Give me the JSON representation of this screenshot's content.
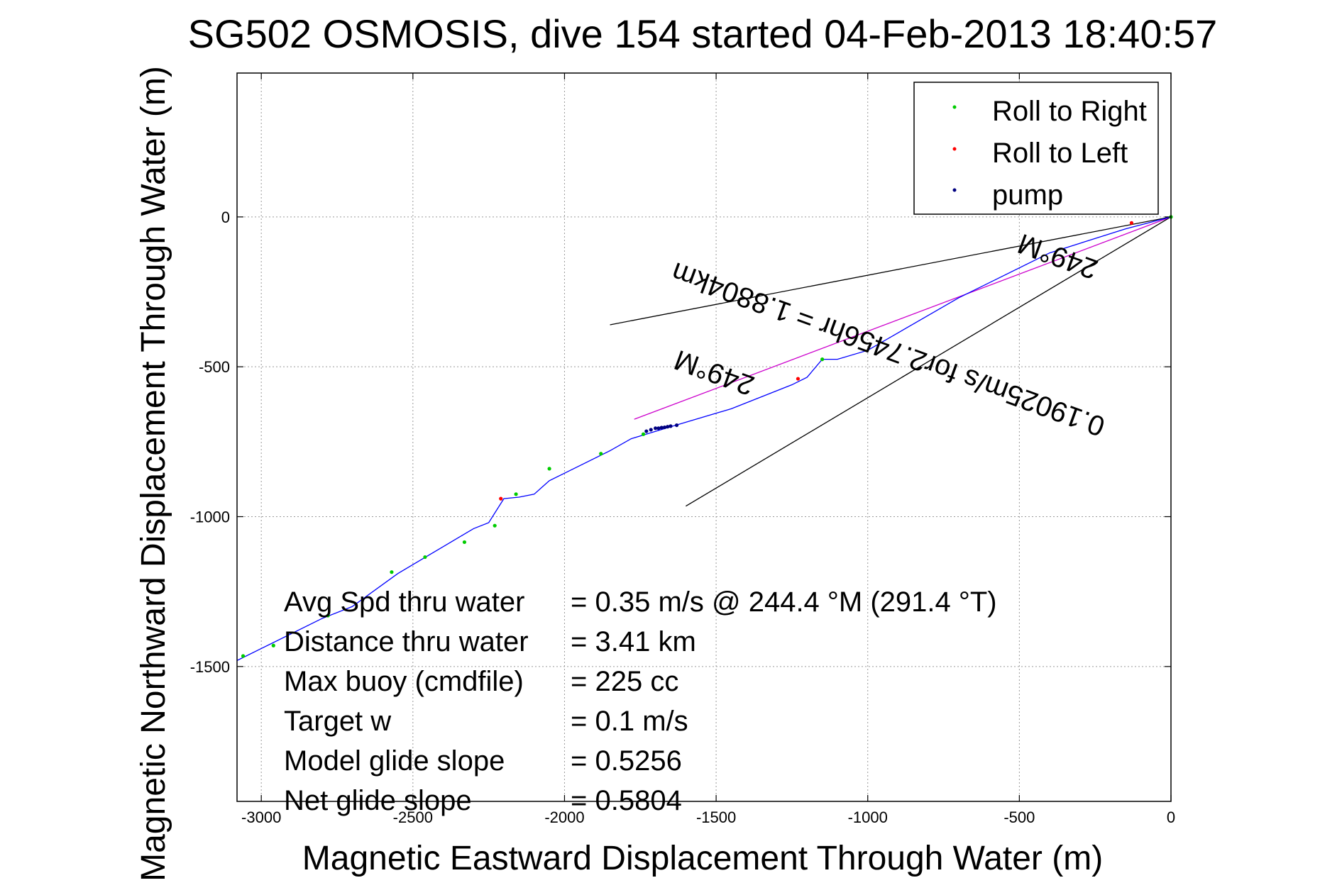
{
  "chart_data": {
    "type": "line",
    "title": "SG502 OSMOSIS, dive 154 started 04-Feb-2013 18:40:57",
    "xlabel": "Magnetic Eastward Displacement Through Water (m)",
    "ylabel": "Magnetic Northward Displacement Through Water (m)",
    "xlim": [
      -3080,
      0
    ],
    "ylim": [
      -1950,
      480
    ],
    "xticks": [
      -3000,
      -2500,
      -2000,
      -1500,
      -1000,
      -500,
      0
    ],
    "xtick_labels": [
      "-3000",
      "-2500",
      "-2000",
      "-1500",
      "-1000",
      "-500",
      "0"
    ],
    "yticks": [
      0,
      -500,
      -1000,
      -1500
    ],
    "ytick_labels": [
      "0",
      "-500",
      "-1000",
      "-1500"
    ],
    "grid": true,
    "legend": {
      "placement": "top-right",
      "entries": [
        {
          "label": "Roll to Right",
          "color": "#00cc00"
        },
        {
          "label": "Roll to Left",
          "color": "#ff0000"
        },
        {
          "label": "pump",
          "color": "#000080"
        }
      ]
    },
    "series": [
      {
        "color": "#0000ff",
        "x": [
          0,
          -150,
          -400,
          -700,
          -1000,
          -1100,
          -1150,
          -1200,
          -1250,
          -1450,
          -1650,
          -1780,
          -1850,
          -1950,
          -2050,
          -2100,
          -2150,
          -2200,
          -2250,
          -2300,
          -2450,
          -2550,
          -2700,
          -2800,
          -3000,
          -3080
        ],
        "y": [
          0,
          -40,
          -120,
          -270,
          -445,
          -475,
          -475,
          -535,
          -560,
          -640,
          -700,
          -740,
          -780,
          -830,
          -880,
          -925,
          -935,
          -940,
          -1020,
          -1040,
          -1130,
          -1190,
          -1300,
          -1340,
          -1440,
          -1480
        ]
      }
    ],
    "markers": {
      "roll_right": {
        "color": "#00cc00",
        "x": [
          0,
          -1150,
          -1740,
          -1880,
          -2050,
          -2160,
          -2230,
          -2330,
          -2460,
          -2570,
          -2780,
          -2960,
          -3060
        ],
        "y": [
          0,
          -475,
          -725,
          -790,
          -840,
          -925,
          -1030,
          -1085,
          -1135,
          -1185,
          -1330,
          -1430,
          -1465
        ]
      },
      "roll_left": {
        "color": "#ff0000",
        "x": [
          -130,
          -1230,
          -2210
        ],
        "y": [
          -20,
          -540,
          -940
        ]
      },
      "pump": {
        "color": "#000080",
        "x": [
          -1730,
          -1715,
          -1700,
          -1690,
          -1680,
          -1670,
          -1660,
          -1650,
          -1630
        ],
        "y": [
          -715,
          -710,
          -705,
          -705,
          -703,
          -702,
          -700,
          -698,
          -695
        ]
      }
    },
    "reference_lines": [
      {
        "color": "#000000",
        "x": [
          0,
          -1850
        ],
        "y": [
          0,
          -360
        ]
      },
      {
        "color": "#000000",
        "x": [
          0,
          -1600
        ],
        "y": [
          0,
          -965
        ]
      },
      {
        "color": "#cc00cc",
        "x": [
          0,
          -1770
        ],
        "y": [
          0,
          -675
        ]
      }
    ],
    "annotations": [
      {
        "text": "0.19025m/s for2.7456hr = 1.8804km",
        "rotation": 200
      },
      {
        "text": "249°M",
        "rotation": 200
      },
      {
        "text": "249°M",
        "rotation": 200
      }
    ],
    "stats": [
      {
        "label": "Avg Spd thru water",
        "value": "=  0.35 m/s @ 244.4 °M (291.4 °T)"
      },
      {
        "label": "Distance thru water",
        "value": "=  3.41 km"
      },
      {
        "label": "Max buoy (cmdfile)",
        "value": "= 225 cc"
      },
      {
        "label": "Target w",
        "value": "= 0.1 m/s"
      },
      {
        "label": "Model glide slope",
        "value": "= 0.5256"
      },
      {
        "label": "Net glide slope",
        "value": "= 0.5804"
      }
    ]
  }
}
